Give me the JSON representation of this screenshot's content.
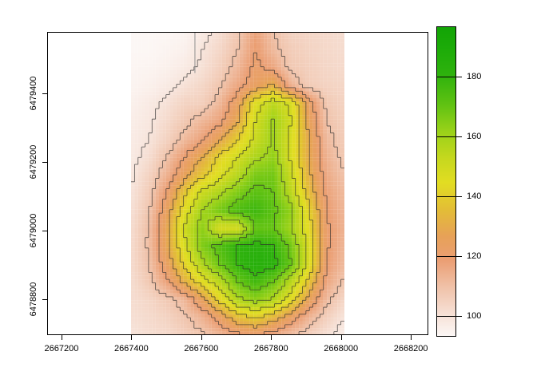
{
  "figure": {
    "background": "#ffffff",
    "box_color": "#000000",
    "tick_color": "#000000",
    "contour_color": "rgba(45,45,45,0.8)",
    "boundary_color": "#8f8f8f"
  },
  "chart_data": {
    "type": "heatmap",
    "title": "",
    "xlabel": "",
    "ylabel": "",
    "plot_x_range": [
      2667159,
      2668250
    ],
    "plot_y_range": [
      6478695,
      6479580
    ],
    "x_ticks": [
      2667200,
      2667400,
      2667600,
      2667800,
      2668000,
      2668200
    ],
    "y_ticks": [
      6478800,
      6479000,
      6479200,
      6479400
    ],
    "raster_x_extent": [
      2667400,
      2668010
    ],
    "raster_y_extent": [
      6478695,
      6479580
    ],
    "legend": {
      "position": "right",
      "value_range": [
        93.7,
        196.7
      ],
      "ticks": [
        100,
        120,
        140,
        160,
        180
      ]
    },
    "contour_levels": [
      100,
      110,
      120,
      130,
      140,
      150,
      160,
      170,
      180,
      190
    ],
    "palette": [
      [
        93,
        "#fdfaf9"
      ],
      [
        100,
        "#f7e4db"
      ],
      [
        110,
        "#f0c2a9"
      ],
      [
        119,
        "#eb9f74"
      ],
      [
        127,
        "#e7a158"
      ],
      [
        136,
        "#e3bd36"
      ],
      [
        145,
        "#e2dd22"
      ],
      [
        153,
        "#c6d81e"
      ],
      [
        162,
        "#9ad219"
      ],
      [
        171,
        "#60c212"
      ],
      [
        181,
        "#2eb20d"
      ],
      [
        190,
        "#1cab08"
      ],
      [
        197,
        "#12a405"
      ]
    ],
    "grid": {
      "ncols": 13,
      "nrows": 18,
      "order": "north_to_south",
      "values": [
        [
          94,
          94,
          94,
          95,
          98,
          102,
          108,
          118,
          110,
          105,
          104,
          103,
          102
        ],
        [
          94,
          94,
          95,
          96,
          100,
          104,
          110,
          120,
          112,
          107,
          105,
          103.5,
          102.5
        ],
        [
          94.5,
          95,
          96,
          98,
          101,
          106,
          113,
          122,
          117,
          108,
          106,
          104,
          103
        ],
        [
          95,
          96,
          98,
          101,
          104,
          109,
          117,
          124,
          132,
          114,
          107,
          105,
          104
        ],
        [
          96,
          98,
          101,
          105,
          106,
          113,
          125,
          146,
          155,
          148,
          124,
          108,
          105
        ],
        [
          97,
          99,
          103,
          108,
          113,
          118,
          130,
          150,
          161,
          150,
          127,
          110,
          106
        ],
        [
          97.5,
          100,
          105,
          112,
          118,
          128,
          140,
          152,
          161,
          148,
          130,
          112,
          107
        ],
        [
          98,
          102,
          110,
          120,
          130,
          142,
          150,
          158,
          163,
          148,
          130,
          114,
          108
        ],
        [
          99,
          105,
          114,
          126,
          138,
          147,
          156,
          167,
          168,
          152,
          132,
          116,
          110
        ],
        [
          100,
          107,
          120,
          138,
          152,
          158,
          166,
          172,
          170,
          155,
          136,
          118,
          112
        ],
        [
          101,
          109,
          125,
          145,
          160,
          168,
          175,
          178,
          172,
          163,
          142,
          120,
          113
        ],
        [
          102,
          111,
          128,
          151,
          164,
          149,
          149,
          170,
          170,
          160,
          144,
          121,
          114
        ],
        [
          102.5,
          111,
          128,
          148,
          166,
          174,
          181,
          183,
          180,
          168,
          148,
          121,
          113
        ],
        [
          102.5,
          110,
          124,
          142,
          158,
          170,
          180,
          185,
          183,
          170,
          148,
          120,
          112
        ],
        [
          102,
          108,
          118,
          132,
          145,
          156,
          170,
          177,
          170,
          156,
          138,
          117,
          109
        ],
        [
          102,
          104,
          108,
          113,
          126,
          143,
          158,
          164,
          158,
          145,
          127,
          112,
          104
        ],
        [
          101.5,
          103,
          105,
          109,
          114,
          124,
          136,
          141,
          134,
          124,
          114,
          106,
          100
        ],
        [
          100,
          102,
          103,
          106,
          109,
          113,
          118,
          120,
          116,
          111,
          106,
          101,
          97
        ]
      ]
    },
    "boundary_line": {
      "x": 2667582,
      "y_from": 6479580,
      "y_to": 6479460
    }
  }
}
